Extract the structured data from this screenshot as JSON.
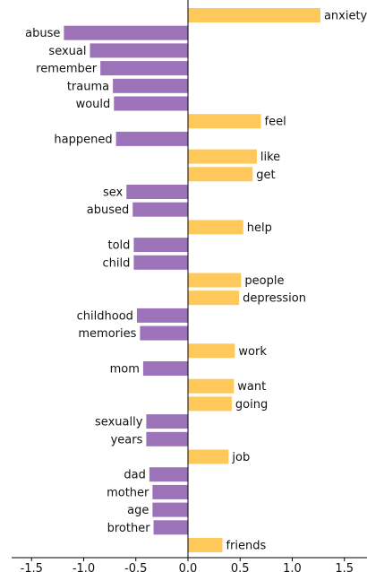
{
  "chart_data": {
    "type": "bar",
    "orientation": "horizontal",
    "xlim": [
      -1.5,
      1.75
    ],
    "xticks": [
      -1.5,
      -1.0,
      -0.5,
      0.0,
      0.5,
      1.0,
      1.5
    ],
    "xtick_labels": [
      "-1.5",
      "-1.0",
      "-0.5",
      "0.0",
      "0.5",
      "1.0",
      "1.5"
    ],
    "grid": false,
    "legend": "none",
    "colors": {
      "positive": "#FFC85A",
      "negative": "#9C72B8",
      "axis": "#000000"
    },
    "bars": [
      {
        "label": "anxiety",
        "value": 1.27
      },
      {
        "label": "abuse",
        "value": -1.19
      },
      {
        "label": "sexual",
        "value": -0.94
      },
      {
        "label": "remember",
        "value": -0.84
      },
      {
        "label": "trauma",
        "value": -0.72
      },
      {
        "label": "would",
        "value": -0.71
      },
      {
        "label": "feel",
        "value": 0.7
      },
      {
        "label": "happened",
        "value": -0.69
      },
      {
        "label": "like",
        "value": 0.66
      },
      {
        "label": "get",
        "value": 0.62
      },
      {
        "label": "sex",
        "value": -0.59
      },
      {
        "label": "abused",
        "value": -0.53
      },
      {
        "label": "help",
        "value": 0.53
      },
      {
        "label": "told",
        "value": -0.52
      },
      {
        "label": "child",
        "value": -0.52
      },
      {
        "label": "people",
        "value": 0.51
      },
      {
        "label": "depression",
        "value": 0.49
      },
      {
        "label": "childhood",
        "value": -0.49
      },
      {
        "label": "memories",
        "value": -0.46
      },
      {
        "label": "work",
        "value": 0.45
      },
      {
        "label": "mom",
        "value": -0.43
      },
      {
        "label": "want",
        "value": 0.44
      },
      {
        "label": "going",
        "value": 0.42
      },
      {
        "label": "sexually",
        "value": -0.4
      },
      {
        "label": "years",
        "value": -0.4
      },
      {
        "label": "job",
        "value": 0.39
      },
      {
        "label": "dad",
        "value": -0.37
      },
      {
        "label": "mother",
        "value": -0.34
      },
      {
        "label": "age",
        "value": -0.34
      },
      {
        "label": "brother",
        "value": -0.33
      },
      {
        "label": "friends",
        "value": 0.33
      }
    ]
  }
}
